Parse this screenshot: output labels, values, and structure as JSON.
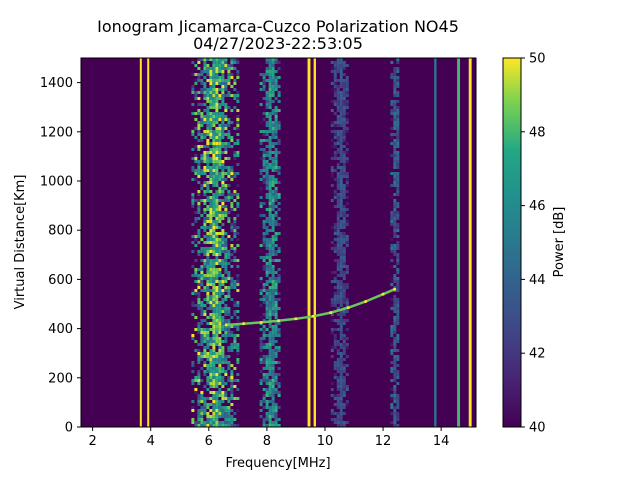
{
  "chart_data": {
    "type": "heatmap",
    "title_line1": "Ionogram Jicamarca-Cuzco Polarization NO45",
    "title_line2": "04/27/2023-22:53:05",
    "xlabel": "Frequency[MHz]",
    "ylabel": "Virtual Distance[Km]",
    "xlim": [
      1.6,
      15.2
    ],
    "ylim": [
      0,
      1500
    ],
    "x_ticks": [
      2,
      4,
      6,
      8,
      10,
      12,
      14
    ],
    "y_ticks": [
      0,
      200,
      400,
      600,
      800,
      1000,
      1200,
      1400
    ],
    "colorbar": {
      "label": "Power [dB]",
      "range": [
        40,
        50
      ],
      "ticks": [
        40,
        42,
        44,
        46,
        48,
        50
      ],
      "colormap": "viridis"
    },
    "background_level_db": 40,
    "interference_bands_mhz": [
      {
        "center": 3.65,
        "width": 0.05,
        "level": 50
      },
      {
        "center": 3.9,
        "width": 0.04,
        "level": 50
      },
      {
        "center": 6.2,
        "width": 1.6,
        "level": 50
      },
      {
        "center": 8.1,
        "width": 0.7,
        "level": 48
      },
      {
        "center": 9.45,
        "width": 0.1,
        "level": 50
      },
      {
        "center": 9.65,
        "width": 0.08,
        "level": 50
      },
      {
        "center": 10.5,
        "width": 0.6,
        "level": 44
      },
      {
        "center": 12.4,
        "width": 0.3,
        "level": 45
      },
      {
        "center": 13.8,
        "width": 0.08,
        "level": 45
      },
      {
        "center": 14.6,
        "width": 0.1,
        "level": 48
      },
      {
        "center": 15.0,
        "width": 0.1,
        "level": 50
      }
    ],
    "echo_trace": {
      "frequency_mhz": [
        6.6,
        7.2,
        7.8,
        8.4,
        9.0,
        9.6,
        10.2,
        10.8,
        11.4,
        12.0,
        12.4
      ],
      "virtual_distance_km": [
        415,
        420,
        425,
        432,
        440,
        450,
        465,
        485,
        510,
        540,
        560
      ]
    }
  }
}
